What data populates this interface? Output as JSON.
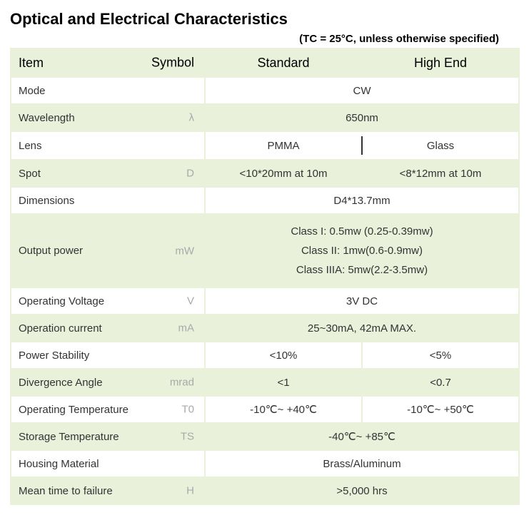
{
  "title": "Optical and Electrical Characteristics",
  "condition": "(TC = 25°C, unless otherwise specified)",
  "headers": {
    "item": "Item",
    "symbol": "Symbol",
    "standard": "Standard",
    "highend": "High End"
  },
  "rows": [
    {
      "item": "Mode",
      "symbol": "",
      "merged": true,
      "value": "CW",
      "stripe": "even"
    },
    {
      "item": "Wavelength",
      "symbol": "λ",
      "merged": true,
      "value": "650nm",
      "stripe": "odd"
    },
    {
      "item": "Lens",
      "symbol": "",
      "merged": false,
      "standard": "PMMA",
      "highend": "Glass",
      "stripe": "even",
      "divider": true
    },
    {
      "item": "Spot",
      "symbol": "D",
      "merged": false,
      "standard": "<10*20mm at 10m",
      "highend": "<8*12mm at 10m",
      "stripe": "odd"
    },
    {
      "item": "Dimensions",
      "symbol": "",
      "merged": true,
      "value": "D4*13.7mm",
      "stripe": "even"
    },
    {
      "item": "Output power",
      "symbol": "mW",
      "merged": true,
      "multi": [
        "Class I: 0.5mw (0.25-0.39mw)",
        "Class II: 1mw(0.6-0.9mw)",
        "Class IIIA: 5mw(2.2-3.5mw)"
      ],
      "stripe": "odd"
    },
    {
      "item": "Operating Voltage",
      "symbol": "V",
      "merged": true,
      "value": "3V DC",
      "stripe": "even"
    },
    {
      "item": "Operation current",
      "symbol": "mA",
      "merged": true,
      "value": "25~30mA, 42mA MAX.",
      "stripe": "odd"
    },
    {
      "item": "Power Stability",
      "symbol": "",
      "merged": false,
      "standard": "<10%",
      "highend": "<5%",
      "stripe": "even"
    },
    {
      "item": "Divergence Angle",
      "symbol": "mrad",
      "merged": false,
      "standard": "<1",
      "highend": "<0.7",
      "stripe": "odd"
    },
    {
      "item": "Operating Temperature",
      "symbol": "T0",
      "merged": false,
      "standard": "-10℃~ +40℃",
      "highend": "-10℃~ +50℃",
      "stripe": "even"
    },
    {
      "item": "Storage Temperature",
      "symbol": "TS",
      "merged": true,
      "value": "-40℃~ +85℃",
      "stripe": "odd"
    },
    {
      "item": "Housing Material",
      "symbol": "",
      "merged": true,
      "value": "Brass/Aluminum",
      "stripe": "even"
    },
    {
      "item": "Mean time to failure",
      "symbol": "H",
      "merged": true,
      "value": ">5,000 hrs",
      "stripe": "odd"
    }
  ]
}
